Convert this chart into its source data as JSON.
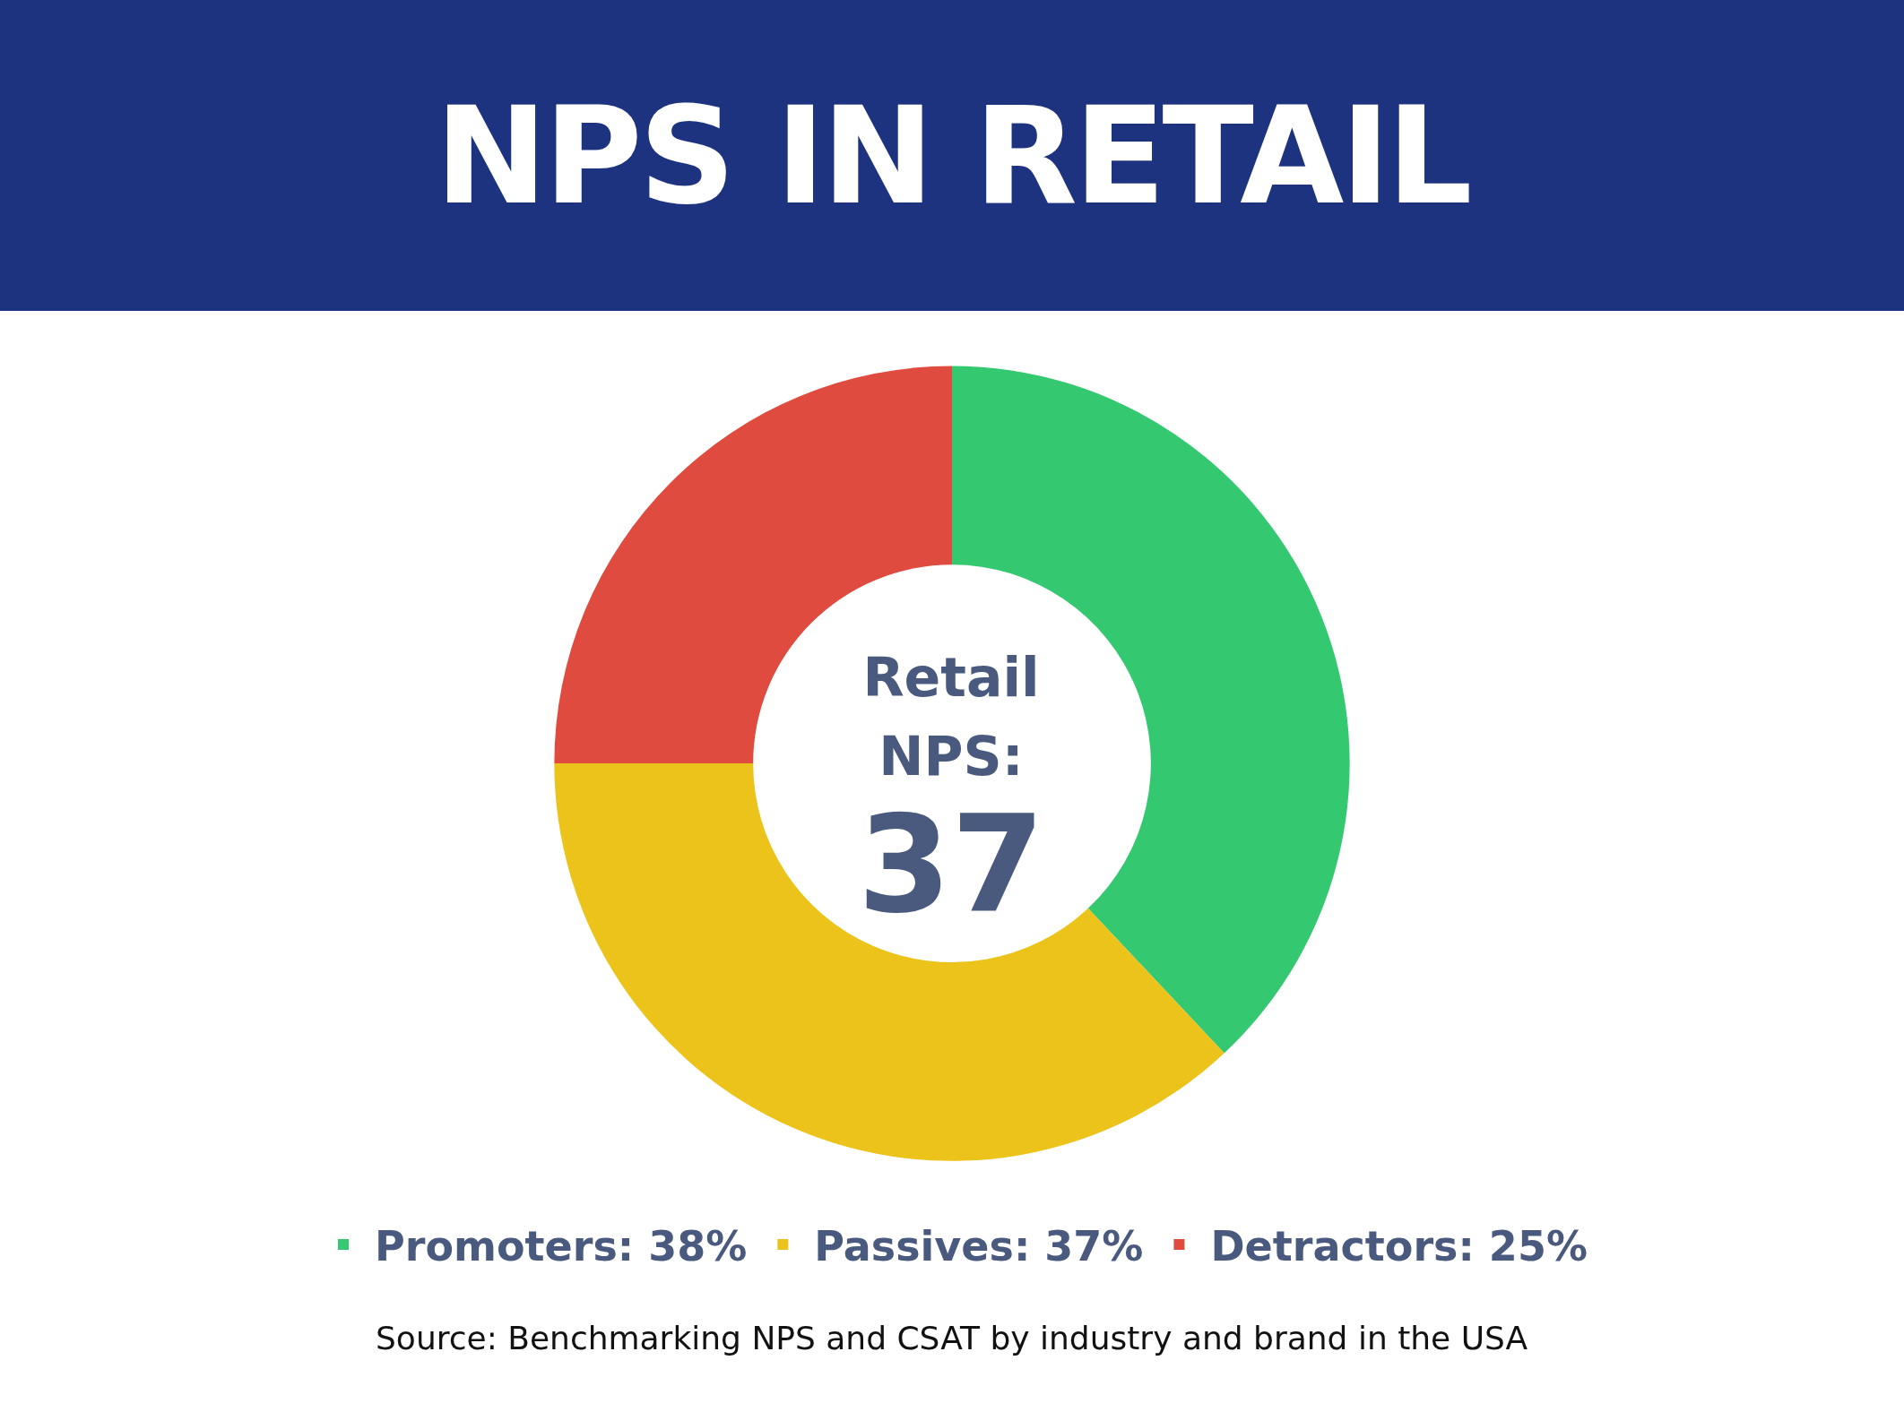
{
  "chart_data": {
    "type": "donut",
    "title": "NPS IN RETAIL",
    "categories": [
      "Promoters: 38%",
      "Passives: 37%",
      "Detractors: 25%"
    ],
    "values": [
      38,
      37,
      25
    ],
    "colors": [
      "#34c971",
      "#ecc31a",
      "#e04b3f"
    ],
    "legend": "bottom",
    "annotations": [
      "Retail NPS:",
      "37",
      "Source: Benchmarking NPS and CSAT by industry and brand in the USA"
    ]
  }
}
